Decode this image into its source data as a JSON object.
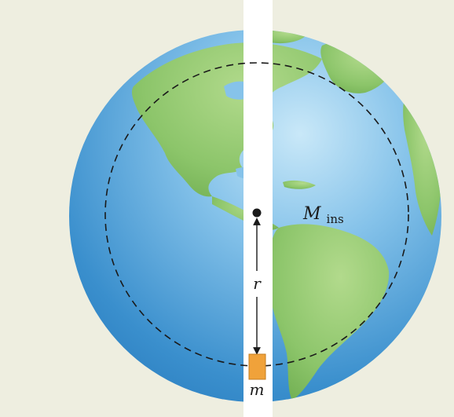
{
  "labels": {
    "mass_inside_symbol": "M",
    "mass_inside_subscript": "ins",
    "radius_symbol": "r",
    "small_mass_symbol": "m"
  },
  "colors": {
    "background": "#eeeee0",
    "ocean_light": "#a9d8f2",
    "ocean_dark": "#2f86c6",
    "land": "#8cc56a",
    "land_dark": "#6fae4f",
    "tunnel": "#ffffff",
    "block_fill": "#f0a23a",
    "block_stroke": "#c57d20",
    "ink": "#1a1a1a"
  },
  "icons": {
    "center": "center-dot-icon",
    "arrow_up": "arrow-up-icon",
    "arrow_down": "arrow-down-icon"
  }
}
